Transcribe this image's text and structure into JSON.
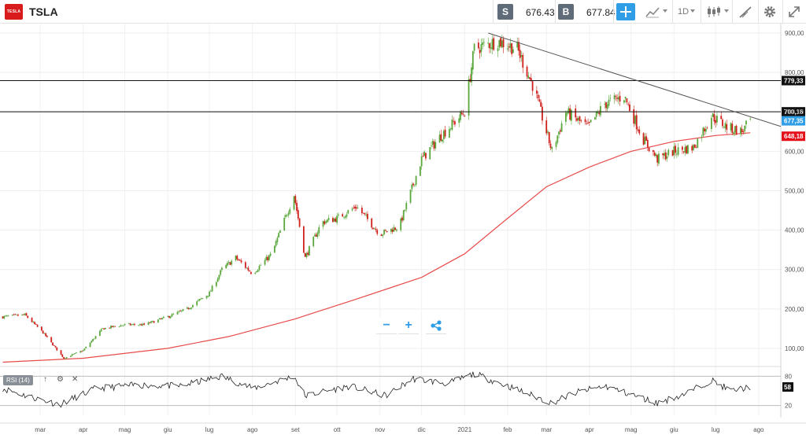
{
  "toolbar": {
    "logo_text": "TESLA",
    "symbol": "TSLA",
    "sell_tag": "S",
    "sell_price": "676.43",
    "buy_tag": "B",
    "buy_price": "677.84",
    "timeframe": "1D"
  },
  "icons": {
    "crosshair": "crosshair-icon",
    "indicators": "indicators-icon",
    "candles": "candlestick-icon",
    "draw": "draw-icon",
    "settings": "gear-icon",
    "fullscreen": "fullscreen-icon",
    "zoom_out": "minus-icon",
    "zoom_in": "plus-icon",
    "share": "share-icon"
  },
  "zoom": {
    "minus": "−",
    "plus": "+"
  },
  "rsi": {
    "label": "RSI (14)",
    "up": "↑",
    "settings": "⚙",
    "close": "✕"
  },
  "colors": {
    "up": "#5aa83c",
    "down": "#d0201c",
    "ma": "#e84a4a",
    "last_price": "#2f9ee6",
    "ma_badge": "#e4101a",
    "level": "#111111"
  },
  "chart_data": [
    {
      "type": "candlestick",
      "y_ticks": [
        "900,00",
        "800,00",
        "700,00",
        "600,00",
        "500,00",
        "400,00",
        "300,00",
        "200,00",
        "100,00"
      ],
      "y_tick_values": [
        900,
        800,
        700,
        600,
        500,
        400,
        300,
        200,
        100
      ],
      "ylim": [
        50,
        910
      ],
      "x_ticks": [
        "mar",
        "apr",
        "mag",
        "giu",
        "lug",
        "ago",
        "set",
        "ott",
        "nov",
        "dic",
        "2021",
        "feb",
        "mar",
        "apr",
        "mag",
        "giu",
        "lug",
        "ago"
      ],
      "x_tick_dates": [
        "2020-03-01",
        "2020-04-01",
        "2020-05-01",
        "2020-06-01",
        "2020-07-01",
        "2020-08-01",
        "2020-09-01",
        "2020-10-01",
        "2020-11-01",
        "2020-12-01",
        "2021-01-01",
        "2021-02-01",
        "2021-03-01",
        "2021-04-01",
        "2021-05-01",
        "2021-06-01",
        "2021-07-01",
        "2021-08-01"
      ],
      "xlim": [
        "2020-02-01",
        "2021-08-17"
      ],
      "close_path": [
        {
          "date": "2020-02-03",
          "close": 180
        },
        {
          "date": "2020-02-19",
          "close": 185
        },
        {
          "date": "2020-03-03",
          "close": 140
        },
        {
          "date": "2020-03-18",
          "close": 75
        },
        {
          "date": "2020-04-01",
          "close": 95
        },
        {
          "date": "2020-04-15",
          "close": 150
        },
        {
          "date": "2020-05-01",
          "close": 160
        },
        {
          "date": "2020-05-15",
          "close": 160
        },
        {
          "date": "2020-06-01",
          "close": 180
        },
        {
          "date": "2020-06-15",
          "close": 200
        },
        {
          "date": "2020-07-01",
          "close": 240
        },
        {
          "date": "2020-07-10",
          "close": 300
        },
        {
          "date": "2020-07-20",
          "close": 330
        },
        {
          "date": "2020-08-01",
          "close": 290
        },
        {
          "date": "2020-08-15",
          "close": 340
        },
        {
          "date": "2020-08-31",
          "close": 490
        },
        {
          "date": "2020-09-08",
          "close": 330
        },
        {
          "date": "2020-09-20",
          "close": 420
        },
        {
          "date": "2020-10-01",
          "close": 430
        },
        {
          "date": "2020-10-15",
          "close": 460
        },
        {
          "date": "2020-11-01",
          "close": 390
        },
        {
          "date": "2020-11-15",
          "close": 410
        },
        {
          "date": "2020-12-01",
          "close": 580
        },
        {
          "date": "2020-12-15",
          "close": 640
        },
        {
          "date": "2021-01-01",
          "close": 700
        },
        {
          "date": "2021-01-08",
          "close": 860
        },
        {
          "date": "2021-01-25",
          "close": 880
        },
        {
          "date": "2021-02-08",
          "close": 860
        },
        {
          "date": "2021-02-20",
          "close": 760
        },
        {
          "date": "2021-03-05",
          "close": 600
        },
        {
          "date": "2021-03-15",
          "close": 700
        },
        {
          "date": "2021-03-31",
          "close": 660
        },
        {
          "date": "2021-04-12",
          "close": 720
        },
        {
          "date": "2021-04-26",
          "close": 740
        },
        {
          "date": "2021-05-10",
          "close": 630
        },
        {
          "date": "2021-05-20",
          "close": 580
        },
        {
          "date": "2021-06-01",
          "close": 600
        },
        {
          "date": "2021-06-15",
          "close": 610
        },
        {
          "date": "2021-06-28",
          "close": 690
        },
        {
          "date": "2021-07-10",
          "close": 660
        },
        {
          "date": "2021-07-20",
          "close": 650
        },
        {
          "date": "2021-07-26",
          "close": 677
        }
      ],
      "moving_average_path": [
        {
          "date": "2020-02-03",
          "value": 65
        },
        {
          "date": "2020-04-01",
          "value": 75
        },
        {
          "date": "2020-06-01",
          "value": 100
        },
        {
          "date": "2020-07-15",
          "value": 130
        },
        {
          "date": "2020-09-01",
          "value": 175
        },
        {
          "date": "2020-10-15",
          "value": 225
        },
        {
          "date": "2020-12-01",
          "value": 280
        },
        {
          "date": "2021-01-01",
          "value": 340
        },
        {
          "date": "2021-02-01",
          "value": 430
        },
        {
          "date": "2021-03-01",
          "value": 510
        },
        {
          "date": "2021-04-01",
          "value": 560
        },
        {
          "date": "2021-05-01",
          "value": 600
        },
        {
          "date": "2021-06-01",
          "value": 625
        },
        {
          "date": "2021-07-01",
          "value": 640
        },
        {
          "date": "2021-07-26",
          "value": 647
        }
      ],
      "horizontal_levels": [
        {
          "label": "779,33",
          "value": 779.33
        },
        {
          "label": "700,16",
          "value": 700.16
        }
      ],
      "trendline": {
        "start": {
          "date": "2021-01-18",
          "value": 900
        },
        "end": {
          "date": "2021-08-17",
          "value": 663
        }
      },
      "last_price": {
        "label": "677,35",
        "value": 677.35
      },
      "ma_value": {
        "label": "648,18",
        "value": 648.18
      }
    },
    {
      "type": "line",
      "y_ticks": [
        "80",
        "20"
      ],
      "y_tick_values": [
        80,
        20
      ],
      "ylim": [
        0,
        100
      ],
      "last_value": "58",
      "path": [
        {
          "date": "2020-02-03",
          "value": 55
        },
        {
          "date": "2020-02-20",
          "value": 40
        },
        {
          "date": "2020-03-15",
          "value": 22
        },
        {
          "date": "2020-04-10",
          "value": 55
        },
        {
          "date": "2020-05-10",
          "value": 62
        },
        {
          "date": "2020-06-10",
          "value": 60
        },
        {
          "date": "2020-07-10",
          "value": 80
        },
        {
          "date": "2020-08-01",
          "value": 55
        },
        {
          "date": "2020-08-31",
          "value": 80
        },
        {
          "date": "2020-09-08",
          "value": 40
        },
        {
          "date": "2020-10-10",
          "value": 60
        },
        {
          "date": "2020-11-05",
          "value": 40
        },
        {
          "date": "2020-11-25",
          "value": 75
        },
        {
          "date": "2020-12-20",
          "value": 65
        },
        {
          "date": "2021-01-08",
          "value": 85
        },
        {
          "date": "2021-02-01",
          "value": 60
        },
        {
          "date": "2021-03-05",
          "value": 25
        },
        {
          "date": "2021-03-20",
          "value": 45
        },
        {
          "date": "2021-04-12",
          "value": 60
        },
        {
          "date": "2021-05-20",
          "value": 25
        },
        {
          "date": "2021-06-10",
          "value": 45
        },
        {
          "date": "2021-06-28",
          "value": 72
        },
        {
          "date": "2021-07-12",
          "value": 50
        },
        {
          "date": "2021-07-26",
          "value": 58
        }
      ]
    }
  ]
}
